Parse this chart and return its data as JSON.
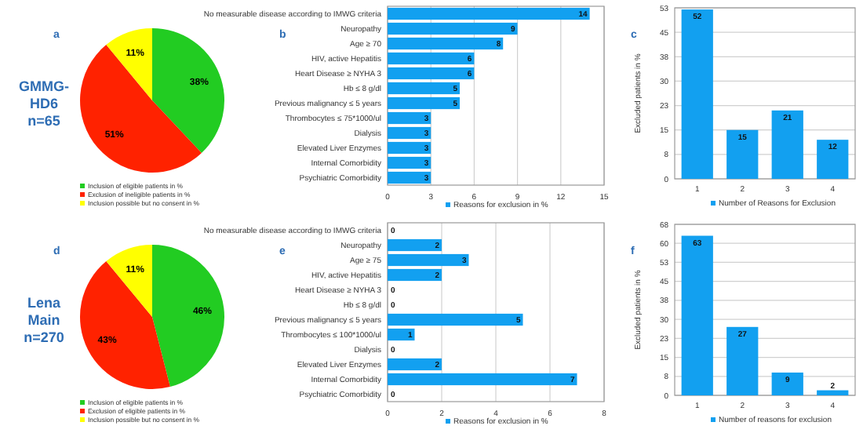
{
  "chart_data": [
    {
      "type": "pie",
      "title": "a",
      "annotations": [
        "GMMG-HD6 n=65"
      ],
      "categories": [
        "Inclusion of eligible patients in %",
        "Exclusion of ineligible patients in %",
        "Inclusion possible but no consent in %"
      ],
      "values": [
        38,
        51,
        11
      ],
      "colors": [
        "#22cc22",
        "#ff2200",
        "#ffff00"
      ],
      "value_labels": [
        "38%",
        "51%",
        "11%"
      ],
      "legend": "bottom"
    },
    {
      "type": "bar",
      "orientation": "horizontal",
      "title": "b",
      "categories": [
        "No measurable disease according to IMWG criteria",
        "Neuropathy",
        "Age ≥ 70",
        "HIV, active Hepatitis",
        "Heart Disease ≥ NYHA 3",
        "Hb ≤ 8 g/dl",
        "Previous malignancy ≤ 5 years",
        "Thrombocytes ≤ 75*1000/ul",
        "Dialysis",
        "Elevated Liver Enzymes",
        "Internal Comorbidity",
        "Psychiatric Comorbidity"
      ],
      "series": [
        {
          "name": "Reasons for exclusion in %",
          "color": "#12a0f0",
          "values": [
            14,
            9,
            8,
            6,
            6,
            5,
            5,
            3,
            3,
            3,
            3,
            3
          ]
        }
      ],
      "xlim": [
        0,
        15
      ],
      "xticks": [
        0,
        3,
        6,
        9,
        12,
        15
      ],
      "grid": "x",
      "data_labels": true,
      "legend": "bottom"
    },
    {
      "type": "bar",
      "title": "c",
      "ylabel": "Excluded patients in %",
      "categories": [
        "1",
        "2",
        "3",
        "4"
      ],
      "series": [
        {
          "name": "Number of Reasons for Exclusion",
          "color": "#12a0f0",
          "values": [
            52,
            15,
            21,
            12
          ]
        }
      ],
      "ylim": [
        0,
        52.5
      ],
      "yticks": [
        0,
        {
          "value": 7.5,
          "label": "8"
        },
        15,
        {
          "value": 22.5,
          "label": "23"
        },
        30,
        {
          "value": 37.5,
          "label": "38"
        },
        45,
        {
          "value": 52.5,
          "label": "53"
        }
      ],
      "grid": "y",
      "data_labels": true,
      "legend": "bottom"
    },
    {
      "type": "pie",
      "title": "d",
      "annotations": [
        "Lena Main n=270"
      ],
      "categories": [
        "Inclusion of eligible patients in %",
        "Exclusion of eligible patients in %",
        "Inclusion possible but no consent in %"
      ],
      "values": [
        46,
        43,
        11
      ],
      "colors": [
        "#22cc22",
        "#ff2200",
        "#ffff00"
      ],
      "value_labels": [
        "46%",
        "43%",
        "11%"
      ],
      "legend": "bottom"
    },
    {
      "type": "bar",
      "orientation": "horizontal",
      "title": "e",
      "categories": [
        "No measurable disease according to IMWG criteria",
        "Neuropathy",
        "Age ≥ 75",
        "HIV, active Hepatitis",
        "Heart Disease ≥ NYHA 3",
        "Hb ≤ 8 g/dl",
        "Previous malignancy ≤ 5 years",
        "Thrombocytes ≤ 100*1000/ul",
        "Dialysis",
        "Elevated Liver Enzymes",
        "Internal Comorbidity",
        "Psychiatric Comorbidity"
      ],
      "series": [
        {
          "name": "Reasons for exclusion in %",
          "color": "#12a0f0",
          "values": [
            0,
            2,
            3,
            2,
            0,
            0,
            5,
            1,
            0,
            2,
            7,
            0
          ]
        }
      ],
      "xlim": [
        0,
        8
      ],
      "xticks": [
        0,
        2,
        4,
        6,
        8
      ],
      "grid": "x",
      "data_labels": true,
      "legend": "bottom"
    },
    {
      "type": "bar",
      "title": "f",
      "ylabel": "Excluded patients in %",
      "categories": [
        "1",
        "2",
        "3",
        "4"
      ],
      "series": [
        {
          "name": "Number of reasons for exclusion",
          "color": "#12a0f0",
          "values": [
            63,
            27,
            9,
            2
          ]
        }
      ],
      "ylim": [
        0,
        67.5
      ],
      "yticks": [
        0,
        {
          "value": 7.5,
          "label": "8"
        },
        15,
        {
          "value": 22.5,
          "label": "23"
        },
        30,
        {
          "value": 37.5,
          "label": "38"
        },
        45,
        {
          "value": 52.5,
          "label": "53"
        },
        60,
        {
          "value": 67.5,
          "label": "68"
        }
      ],
      "grid": "y",
      "data_labels": true,
      "legend": "bottom"
    }
  ]
}
